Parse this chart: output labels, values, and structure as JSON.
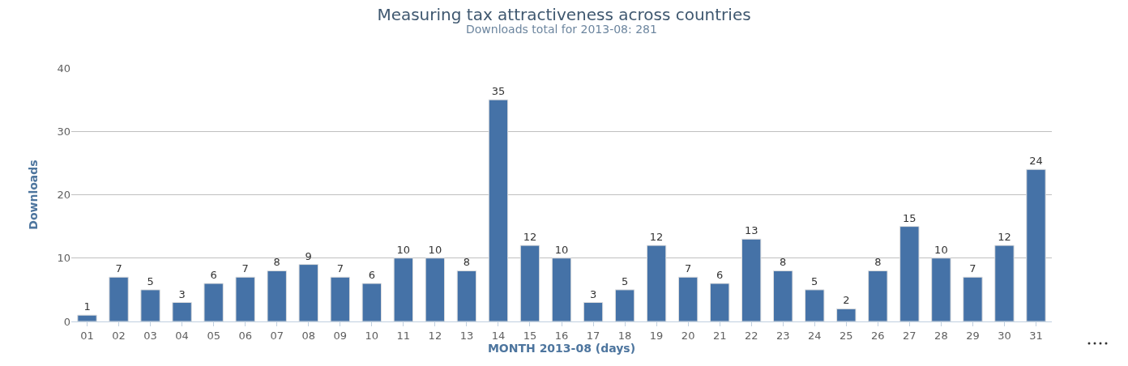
{
  "chart_data": {
    "type": "bar",
    "title": "Measuring tax attractiveness across countries",
    "subtitle": "Downloads total for 2013-08: 281",
    "xlabel": "MONTH 2013-08 (days)",
    "ylabel": "Downloads",
    "categories": [
      "01",
      "02",
      "03",
      "04",
      "05",
      "06",
      "07",
      "08",
      "09",
      "10",
      "11",
      "12",
      "13",
      "14",
      "15",
      "16",
      "17",
      "18",
      "19",
      "20",
      "21",
      "22",
      "23",
      "24",
      "25",
      "26",
      "27",
      "28",
      "29",
      "30",
      "31"
    ],
    "values": [
      1,
      7,
      5,
      3,
      6,
      7,
      8,
      9,
      7,
      6,
      10,
      10,
      8,
      35,
      12,
      10,
      3,
      5,
      12,
      7,
      6,
      13,
      8,
      5,
      2,
      8,
      15,
      10,
      7,
      12,
      24
    ],
    "color": "#4572a7",
    "ylim": [
      0,
      40
    ],
    "yticks": [
      0,
      10,
      20,
      30,
      40
    ],
    "grid": "y",
    "data_labels": true
  }
}
